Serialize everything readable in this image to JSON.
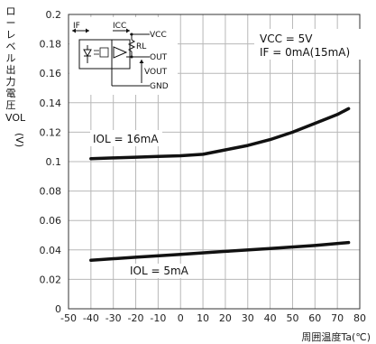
{
  "chart_data": {
    "type": "line",
    "title": "",
    "xlabel": "周囲温度Ta(℃)",
    "ylabel_chars": [
      "ロ",
      "ー",
      "レ",
      "ベ",
      "ル",
      "出",
      "力",
      "電",
      "圧"
    ],
    "ylabel_symbol": "VOL",
    "ylabel_unit": "(V)",
    "xlim": [
      -50,
      80
    ],
    "ylim": [
      0,
      0.2
    ],
    "x_ticks": [
      -50,
      -40,
      -30,
      -20,
      -10,
      0,
      10,
      20,
      30,
      40,
      50,
      60,
      70,
      80
    ],
    "y_ticks": [
      0,
      0.02,
      0.04,
      0.06,
      0.08,
      0.1,
      0.12,
      0.14,
      0.16,
      0.18,
      0.2
    ],
    "y_tick_labels": [
      "0",
      "0.02",
      "0.04",
      "0.06",
      "0.08",
      "0.1",
      "0.12",
      "0.14",
      "0.16",
      "0.18",
      "0.2"
    ],
    "grid": true,
    "conditions": [
      "VCC = 5V",
      "IF = 0mA(15mA)"
    ],
    "series": [
      {
        "name": "IOL = 16mA",
        "x": [
          -40,
          -30,
          -20,
          -10,
          0,
          10,
          20,
          30,
          40,
          50,
          60,
          70,
          75
        ],
        "values": [
          0.102,
          0.1025,
          0.103,
          0.1035,
          0.104,
          0.105,
          0.108,
          0.111,
          0.115,
          0.12,
          0.126,
          0.132,
          0.136
        ]
      },
      {
        "name": "IOL = 5mA",
        "x": [
          -40,
          -20,
          0,
          20,
          40,
          60,
          75
        ],
        "values": [
          0.033,
          0.035,
          0.037,
          0.039,
          0.041,
          0.043,
          0.045
        ]
      }
    ],
    "circuit_labels": {
      "if": "IF",
      "icc": "ICC",
      "vcc": "VCC",
      "rl": "RL",
      "out": "OUT",
      "vout": "VOUT",
      "gnd": "GND"
    }
  }
}
